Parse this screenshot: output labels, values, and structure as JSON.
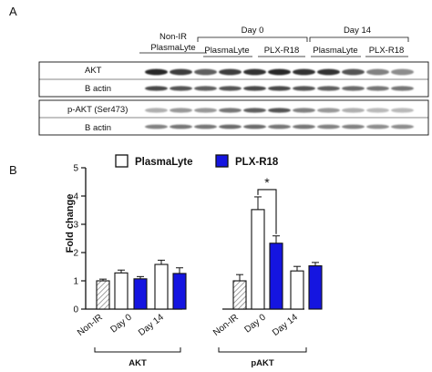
{
  "panel_a": {
    "letter": "A",
    "headers": {
      "non_ir_line1": "Non-IR",
      "non_ir_line2": "PlasmaLyte",
      "day0": "Day 0",
      "day14": "Day 14",
      "day0_plasmalyte": "PlasmaLyte",
      "day0_plx": "PLX-R18",
      "day14_plasmalyte": "PlasmaLyte",
      "day14_plx": "PLX-R18"
    },
    "blot1": {
      "row1": "AKT",
      "row2": "B actin"
    },
    "blot2": {
      "row1": "p-AKT (Ser473)",
      "row2": "B actin"
    }
  },
  "panel_b": {
    "letter": "B",
    "significance_marker": "*",
    "group_labels": [
      "AKT",
      "pAKT"
    ]
  },
  "colors": {
    "plasmalyte": "#ffffff",
    "plx": "#1515e0",
    "non_ir_hatch": "#9a9a9a",
    "axis": "#111111"
  },
  "chart_data": {
    "type": "bar",
    "title": "",
    "xlabel": "",
    "ylabel": "Fold change",
    "ylim": [
      0,
      5
    ],
    "yticks": [
      0,
      1,
      2,
      3,
      4,
      5
    ],
    "grid": false,
    "legend_position": "top",
    "series": [
      {
        "name": "PlasmaLyte",
        "color": "#ffffff"
      },
      {
        "name": "PLX-R18",
        "color": "#1515e0"
      }
    ],
    "groups": [
      {
        "label": "AKT",
        "categories": [
          "Non-IR",
          "Day 0",
          "Day 14"
        ],
        "bars": [
          {
            "category": "Non-IR",
            "series": "Non-IR",
            "value": 1.0,
            "error": 0.06
          },
          {
            "category": "Day 0",
            "series": "PlasmaLyte",
            "value": 1.28,
            "error": 0.1
          },
          {
            "category": "Day 0",
            "series": "PLX-R18",
            "value": 1.07,
            "error": 0.08
          },
          {
            "category": "Day 14",
            "series": "PlasmaLyte",
            "value": 1.58,
            "error": 0.15
          },
          {
            "category": "Day 14",
            "series": "PLX-R18",
            "value": 1.26,
            "error": 0.2
          }
        ]
      },
      {
        "label": "pAKT",
        "categories": [
          "Non-IR",
          "Day 0",
          "Day 14"
        ],
        "bars": [
          {
            "category": "Non-IR",
            "series": "Non-IR",
            "value": 1.0,
            "error": 0.22
          },
          {
            "category": "Day 0",
            "series": "PlasmaLyte",
            "value": 3.52,
            "error": 0.45
          },
          {
            "category": "Day 0",
            "series": "PLX-R18",
            "value": 2.33,
            "error": 0.26
          },
          {
            "category": "Day 14",
            "series": "PlasmaLyte",
            "value": 1.35,
            "error": 0.16
          },
          {
            "category": "Day 14",
            "series": "PLX-R18",
            "value": 1.53,
            "error": 0.12
          }
        ]
      }
    ],
    "annotations": [
      {
        "text": "*",
        "between": [
          "pAKT Day 0 PlasmaLyte",
          "pAKT Day 0 PLX-R18"
        ]
      }
    ]
  }
}
